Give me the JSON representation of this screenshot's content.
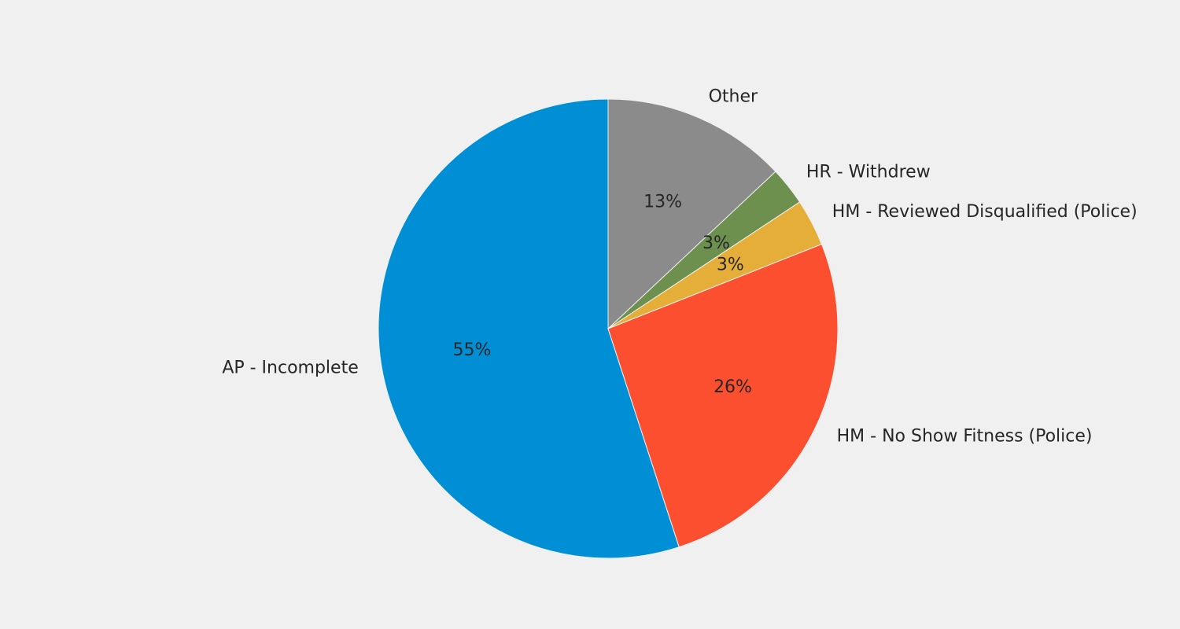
{
  "chart_data": {
    "type": "pie",
    "title": "",
    "start_angle_deg": 90,
    "direction": "counterclockwise",
    "slices": [
      {
        "label": "AP - Incomplete",
        "value": 55,
        "pct_label": "55%",
        "color": "#008fd5"
      },
      {
        "label": "HM - No Show Fitness (Police)",
        "value": 26,
        "pct_label": "26%",
        "color": "#fc4f30"
      },
      {
        "label": "HM - Reviewed Disqualified (Police)",
        "value": 3.3,
        "pct_label": "3%",
        "color": "#e5ae38"
      },
      {
        "label": "HR - Withdrew",
        "value": 2.7,
        "pct_label": "3%",
        "color": "#6d904f"
      },
      {
        "label": "Other",
        "value": 13,
        "pct_label": "13%",
        "color": "#8b8b8b"
      }
    ]
  }
}
